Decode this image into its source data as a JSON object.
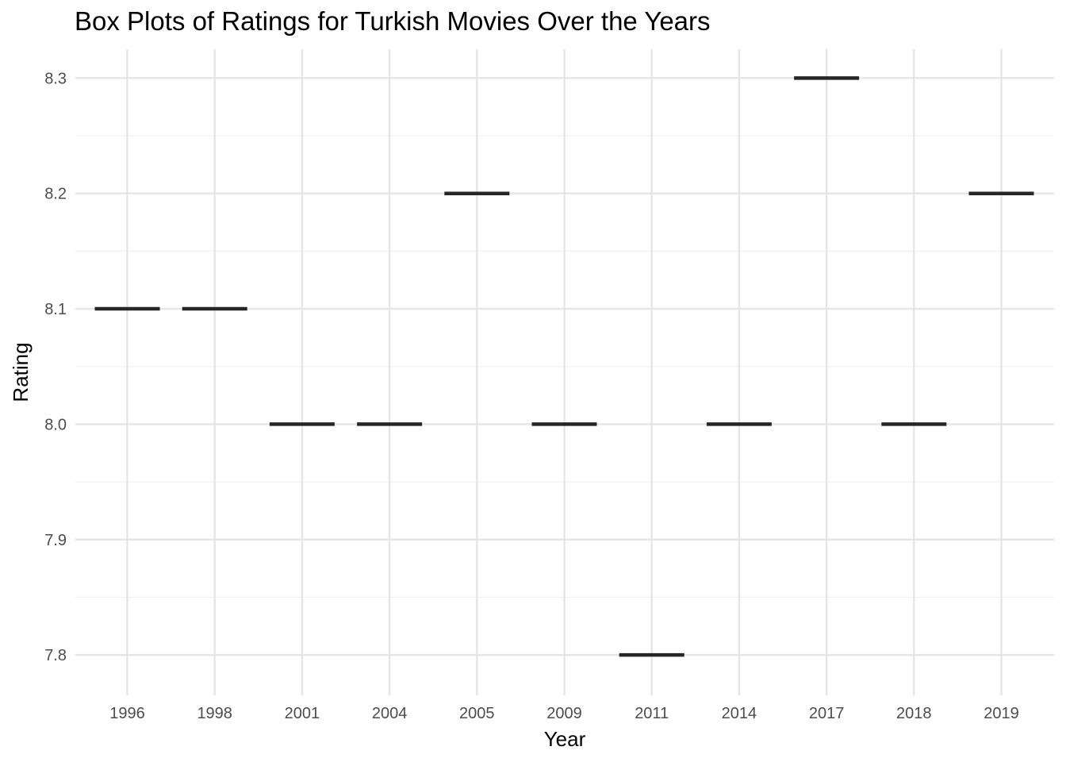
{
  "chart_data": {
    "type": "box",
    "title": "Box Plots of Ratings for Turkish Movies Over the Years",
    "xlabel": "Year",
    "ylabel": "Rating",
    "categories": [
      "1996",
      "1998",
      "2001",
      "2004",
      "2005",
      "2009",
      "2011",
      "2014",
      "2017",
      "2018",
      "2019"
    ],
    "values": [
      8.1,
      8.1,
      8.0,
      8.0,
      8.2,
      8.0,
      7.8,
      8.0,
      8.3,
      8.0,
      8.2
    ],
    "y_ticks": [
      "7.8",
      "7.9",
      "8.0",
      "8.1",
      "8.2",
      "8.3"
    ],
    "ylim": [
      7.765,
      8.325
    ],
    "grid": true,
    "legend": "none",
    "colors": {
      "median": "#262626",
      "grid_major": "#e5e5e5",
      "grid_minor": "#f0f0f0",
      "tick_text": "#4d4d4d"
    }
  }
}
